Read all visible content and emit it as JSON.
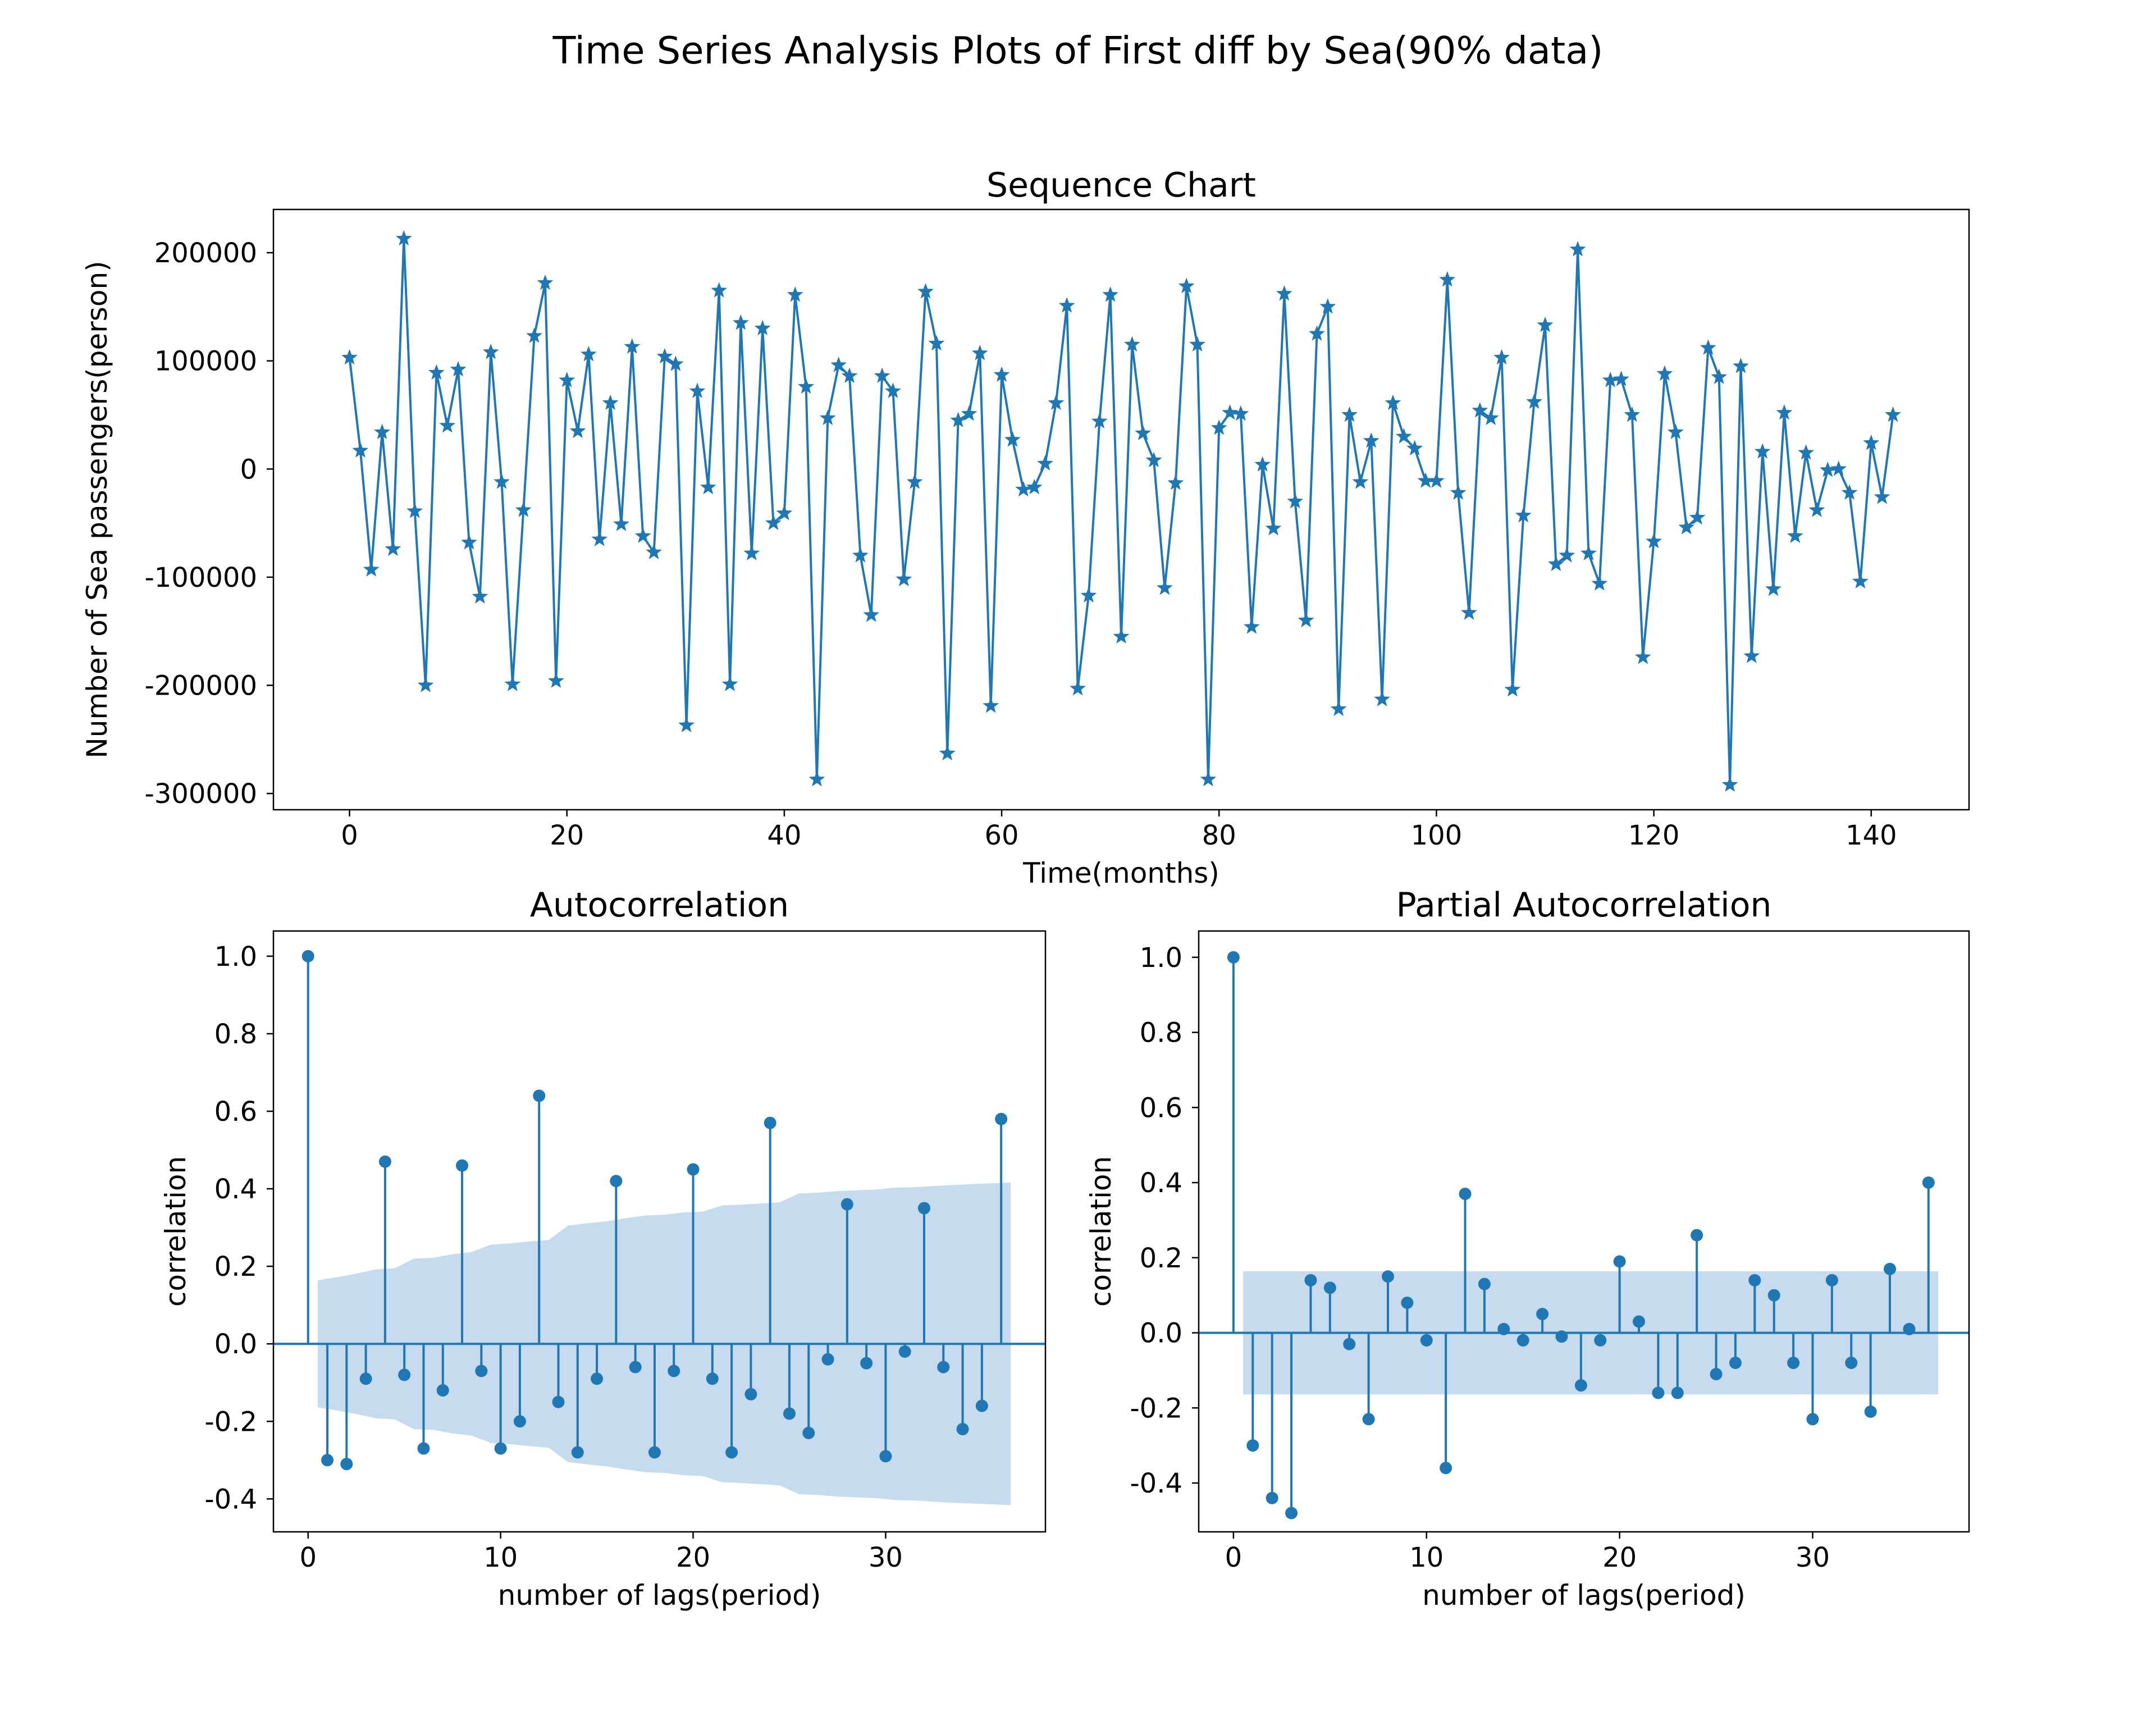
{
  "figure": {
    "title": "Time Series Analysis Plots of First diff by Sea(90% data)",
    "accent_color": "#1f77b4",
    "band_color": "#c6dbee"
  },
  "chart_data": [
    {
      "type": "line",
      "title": "Sequence Chart",
      "xlabel": "Time(months)",
      "ylabel": "Number of Sea passengers(person)",
      "marker": "star",
      "xlim": [
        -7,
        149
      ],
      "ylim": [
        -315000,
        240000
      ],
      "xticks": [
        0,
        20,
        40,
        60,
        80,
        100,
        120,
        140
      ],
      "yticks": [
        -300000,
        -200000,
        -100000,
        0,
        100000,
        200000
      ],
      "grid": false,
      "x_start": 0,
      "y": [
        103000,
        17000,
        -93000,
        34000,
        -74000,
        213000,
        -39000,
        -200000,
        89000,
        40000,
        92000,
        -68000,
        -118000,
        108000,
        -12000,
        -199000,
        -38000,
        123000,
        172000,
        -196000,
        82000,
        35000,
        106000,
        -65000,
        61000,
        -51000,
        113000,
        -62000,
        -77000,
        104000,
        97000,
        -237000,
        72000,
        -17000,
        165000,
        -199000,
        135000,
        -78000,
        130000,
        -50000,
        -41000,
        161000,
        76000,
        -287000,
        47000,
        96000,
        86000,
        -80000,
        -135000,
        86000,
        72000,
        -102000,
        -12000,
        164000,
        116000,
        -263000,
        45000,
        51000,
        107000,
        -219000,
        87000,
        27000,
        -19000,
        -17000,
        5000,
        61000,
        151000,
        -203000,
        -117000,
        44000,
        161000,
        -155000,
        115000,
        33000,
        8000,
        -110000,
        -13000,
        169000,
        115000,
        -287000,
        38000,
        52000,
        51000,
        -146000,
        4000,
        -55000,
        162000,
        -30000,
        -140000,
        125000,
        150000,
        -222000,
        50000,
        -12000,
        26000,
        -213000,
        61000,
        30000,
        19000,
        -11000,
        -11000,
        175000,
        -22000,
        -133000,
        54000,
        47000,
        103000,
        -204000,
        -43000,
        62000,
        133000,
        -88000,
        -80000,
        203000,
        -78000,
        -106000,
        82000,
        83000,
        50000,
        -174000,
        -67000,
        88000,
        34000,
        -54000,
        -45000,
        112000,
        85000,
        -292000,
        95000,
        -173000,
        16000,
        -111000,
        52000,
        -62000,
        15000,
        -38000,
        -1000,
        0,
        -22000,
        -104000,
        24000,
        -26000,
        50000
      ]
    },
    {
      "type": "stem",
      "title": "Autocorrelation",
      "xlabel": "number of lags(period)",
      "ylabel": "correlation",
      "xlim": [
        -1.8,
        38.3
      ],
      "ylim": [
        -0.485,
        1.065
      ],
      "xticks": [
        0,
        10,
        20,
        30
      ],
      "yticks": [
        -0.4,
        -0.2,
        0.0,
        0.2,
        0.4,
        0.6,
        0.8,
        1.0
      ],
      "tick_decimals": 1,
      "grid": false,
      "lags": [
        0,
        1,
        2,
        3,
        4,
        5,
        6,
        7,
        8,
        9,
        10,
        11,
        12,
        13,
        14,
        15,
        16,
        17,
        18,
        19,
        20,
        21,
        22,
        23,
        24,
        25,
        26,
        27,
        28,
        29,
        30,
        31,
        32,
        33,
        34,
        35,
        36
      ],
      "values": [
        1.0,
        -0.3,
        -0.31,
        -0.09,
        0.47,
        -0.08,
        -0.27,
        -0.12,
        0.46,
        -0.07,
        -0.27,
        -0.2,
        0.64,
        -0.15,
        -0.28,
        -0.09,
        0.42,
        -0.06,
        -0.28,
        -0.07,
        0.45,
        -0.09,
        -0.28,
        -0.13,
        0.57,
        -0.18,
        -0.23,
        -0.04,
        0.36,
        -0.05,
        -0.29,
        -0.02,
        0.35,
        -0.06,
        -0.22,
        -0.16,
        0.58
      ],
      "confidence_band": {
        "lags": [
          0.5,
          1.5,
          2.5,
          3.5,
          4.5,
          5.5,
          6.5,
          7.5,
          8.5,
          9.5,
          10.5,
          11.5,
          12.5,
          13.5,
          14.5,
          15.5,
          16.5,
          17.5,
          18.5,
          19.5,
          20.5,
          21.5,
          22.5,
          23.5,
          24.5,
          25.5,
          26.5,
          27.5,
          28.5,
          29.5,
          30.5,
          31.5,
          32.5,
          33.5,
          34.5,
          35.5,
          36.5
        ],
        "upper": [
          0.164,
          0.172,
          0.181,
          0.192,
          0.195,
          0.22,
          0.222,
          0.231,
          0.237,
          0.256,
          0.259,
          0.264,
          0.268,
          0.305,
          0.311,
          0.316,
          0.324,
          0.331,
          0.333,
          0.339,
          0.341,
          0.357,
          0.359,
          0.362,
          0.365,
          0.388,
          0.39,
          0.394,
          0.396,
          0.398,
          0.403,
          0.404,
          0.407,
          0.41,
          0.412,
          0.414,
          0.416
        ]
      }
    },
    {
      "type": "stem",
      "title": "Partial Autocorrelation",
      "xlabel": "number of lags(period)",
      "ylabel": "correlation",
      "xlim": [
        -1.8,
        38.1
      ],
      "ylim": [
        -0.53,
        1.07
      ],
      "xticks": [
        0,
        10,
        20,
        30
      ],
      "yticks": [
        -0.4,
        -0.2,
        0.0,
        0.2,
        0.4,
        0.6,
        0.8,
        1.0
      ],
      "tick_decimals": 1,
      "grid": false,
      "lags": [
        0,
        1,
        2,
        3,
        4,
        5,
        6,
        7,
        8,
        9,
        10,
        11,
        12,
        13,
        14,
        15,
        16,
        17,
        18,
        19,
        20,
        21,
        22,
        23,
        24,
        25,
        26,
        27,
        28,
        29,
        30,
        31,
        32,
        33,
        34,
        35,
        36
      ],
      "values": [
        1.0,
        -0.3,
        -0.44,
        -0.48,
        0.14,
        0.12,
        -0.03,
        -0.23,
        0.15,
        0.08,
        -0.02,
        -0.36,
        0.37,
        0.13,
        0.01,
        -0.02,
        0.05,
        -0.01,
        -0.14,
        -0.02,
        0.19,
        0.03,
        -0.16,
        -0.16,
        0.26,
        -0.11,
        -0.08,
        0.14,
        0.1,
        -0.08,
        -0.23,
        0.14,
        -0.08,
        -0.21,
        0.17,
        0.01,
        0.4
      ],
      "confidence_band": {
        "lags": [
          0.5,
          36.5
        ],
        "upper": [
          0.164,
          0.164
        ]
      }
    }
  ]
}
